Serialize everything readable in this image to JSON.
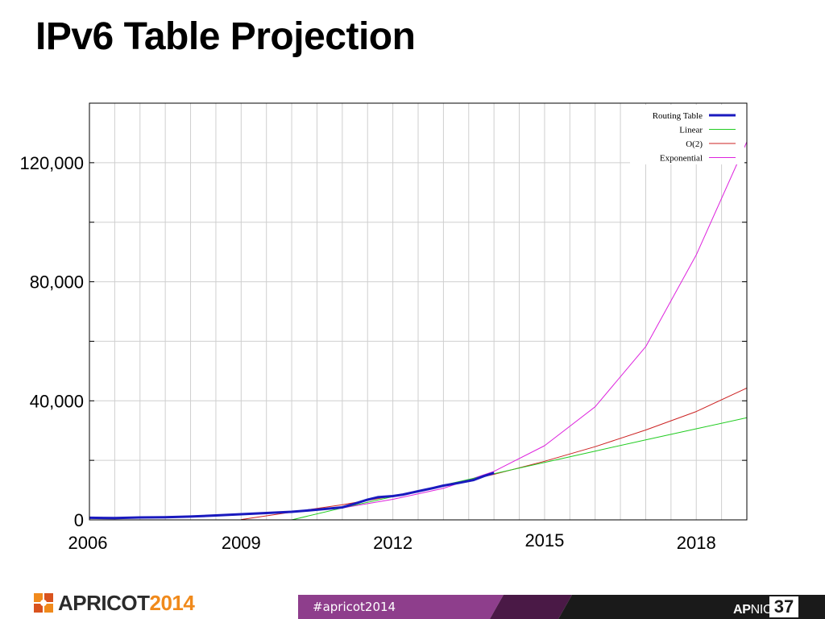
{
  "slide": {
    "title": "IPv6 Table Projection"
  },
  "chart_data": {
    "type": "line",
    "title": "",
    "xlabel": "",
    "ylabel": "",
    "xlim": [
      2006.0,
      2019.0
    ],
    "ylim": [
      0,
      140000
    ],
    "x_ticks": [
      {
        "value": 2006,
        "label": "2006"
      },
      {
        "value": 2009,
        "label": "2009"
      },
      {
        "value": 2012,
        "label": "2012"
      },
      {
        "value": 2015,
        "label": "2015"
      },
      {
        "value": 2018,
        "label": "2018"
      }
    ],
    "y_ticks": [
      {
        "value": 0,
        "label": "0"
      },
      {
        "value": 40000,
        "label": "40,000"
      },
      {
        "value": 80000,
        "label": "80,000"
      },
      {
        "value": 120000,
        "label": "120,000"
      }
    ],
    "grid": true,
    "legend_position": "top-right",
    "series": [
      {
        "name": "Routing Table",
        "color": "#1a1abf",
        "width": 3,
        "x": [
          2006.0,
          2006.5,
          2007.0,
          2007.5,
          2008.0,
          2008.5,
          2009.0,
          2009.5,
          2010.0,
          2010.5,
          2011.0,
          2011.2,
          2011.5,
          2011.7,
          2012.0,
          2012.2,
          2012.5,
          2012.8,
          2013.0,
          2013.3,
          2013.6,
          2013.8,
          2014.0
        ],
        "y": [
          700,
          600,
          800,
          900,
          1100,
          1500,
          1900,
          2300,
          2700,
          3400,
          4200,
          5200,
          6800,
          7600,
          8000,
          8500,
          9600,
          10700,
          11500,
          12400,
          13400,
          14700,
          15800
        ]
      },
      {
        "name": "Linear",
        "color": "#22cc22",
        "width": 1,
        "x": [
          2010.0,
          2011.0,
          2012.0,
          2013.0,
          2014.0,
          2015.0,
          2016.0,
          2017.0,
          2018.0,
          2019.0
        ],
        "y": [
          0,
          4000,
          7800,
          11700,
          15500,
          19300,
          23100,
          26900,
          30600,
          34300
        ]
      },
      {
        "name": "O(2)",
        "color": "#cc2222",
        "width": 1,
        "x": [
          2009.0,
          2010.0,
          2011.0,
          2012.0,
          2013.0,
          2014.0,
          2015.0,
          2016.0,
          2017.0,
          2018.0,
          2019.0
        ],
        "y": [
          100,
          2600,
          5100,
          8000,
          11500,
          15300,
          19700,
          24600,
          30200,
          36400,
          44300
        ]
      },
      {
        "name": "Exponential",
        "color": "#dd22dd",
        "width": 1,
        "x": [
          2006.0,
          2007.0,
          2008.0,
          2009.0,
          2010.0,
          2011.0,
          2012.0,
          2013.0,
          2014.0,
          2015.0,
          2016.0,
          2017.0,
          2018.0,
          2019.0
        ],
        "y": [
          600,
          900,
          1300,
          1800,
          2700,
          4000,
          6900,
          10600,
          16300,
          24900,
          38000,
          58200,
          89000,
          127000
        ]
      }
    ]
  },
  "footer": {
    "conference_name": "APRICOT",
    "conference_year": "2014",
    "hashtag": "#apricot2014",
    "org_prefix": "AP",
    "org_suffix": "NIC",
    "org_number": "37",
    "colors": {
      "purple": "#8e3e8c",
      "dark_purple": "#4a1946",
      "black": "#1a1a1a",
      "orange": "#f08a1c"
    }
  }
}
